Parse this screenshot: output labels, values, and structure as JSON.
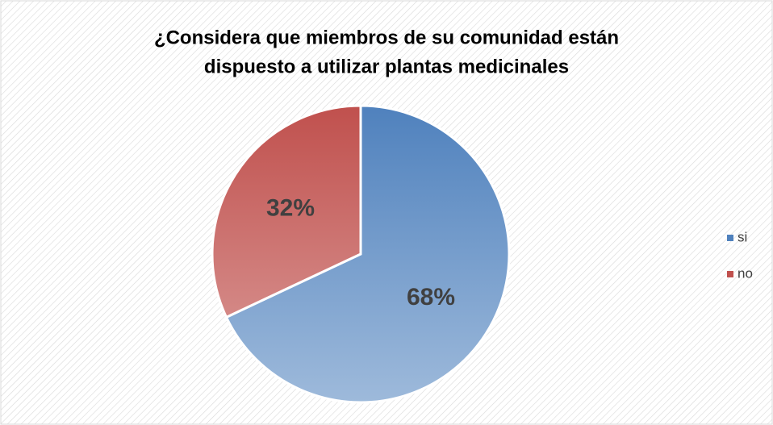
{
  "chart_data": {
    "type": "pie",
    "title": [
      "¿Considera que miembros de su comunidad están",
      "dispuesto a utilizar  plantas medicinales"
    ],
    "categories": [
      "si",
      "no"
    ],
    "values": [
      68,
      32
    ],
    "value_labels": [
      "68%",
      "32%"
    ],
    "colors": [
      "#4f81bd",
      "#c0504d"
    ],
    "legend": "right"
  }
}
